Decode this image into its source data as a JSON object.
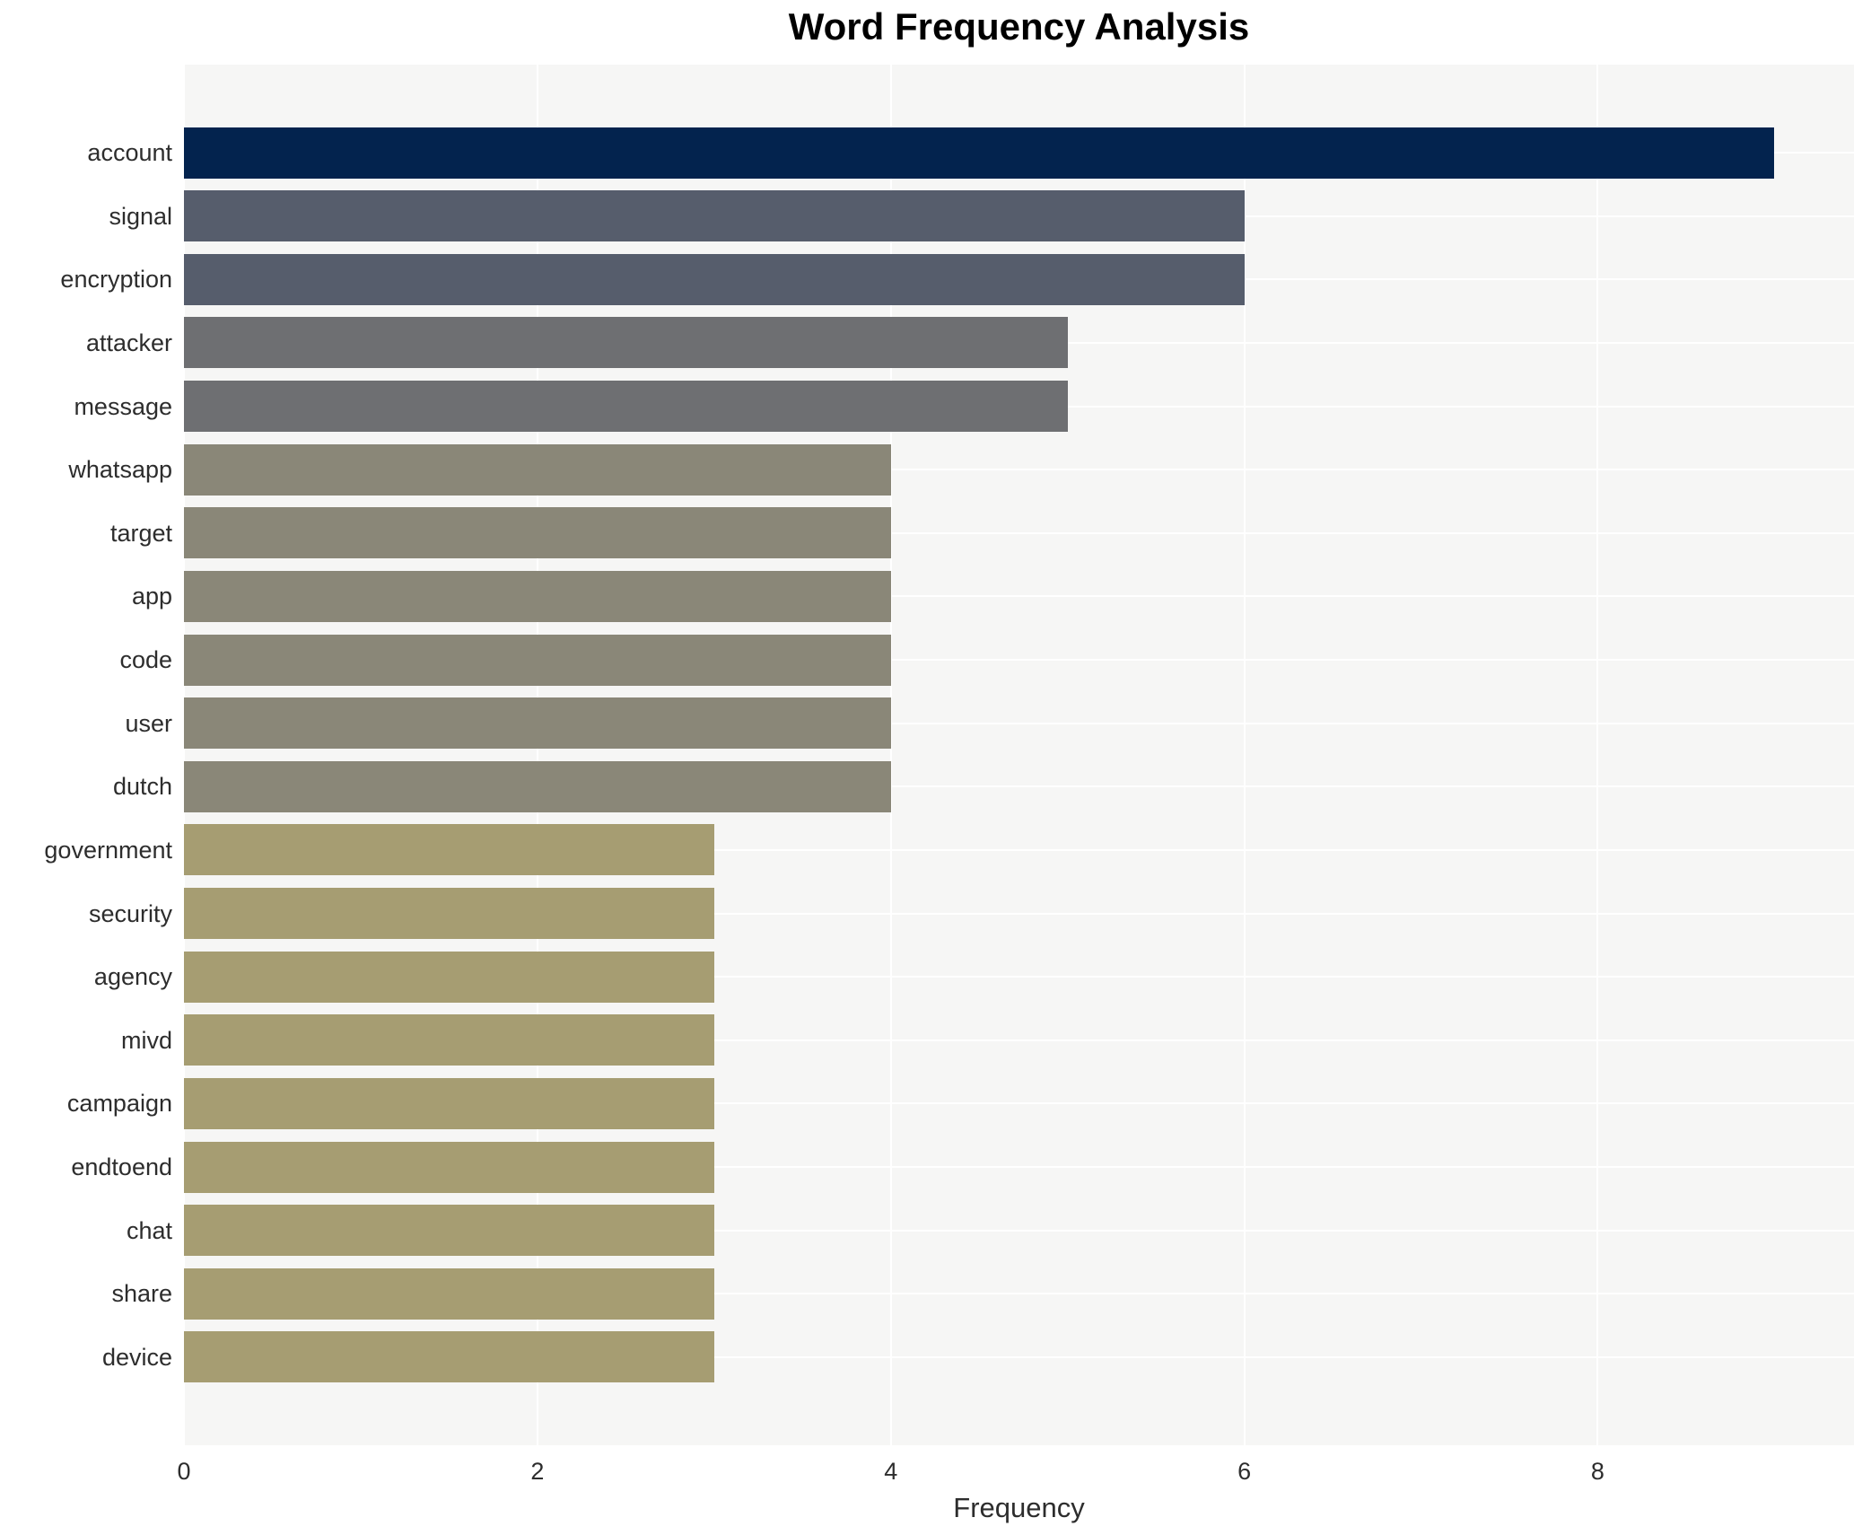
{
  "chart_data": {
    "type": "bar",
    "orientation": "horizontal",
    "title": "Word Frequency Analysis",
    "xlabel": "Frequency",
    "ylabel": "",
    "categories": [
      "account",
      "signal",
      "encryption",
      "attacker",
      "message",
      "whatsapp",
      "target",
      "app",
      "code",
      "user",
      "dutch",
      "government",
      "security",
      "agency",
      "mivd",
      "campaign",
      "endtoend",
      "chat",
      "share",
      "device"
    ],
    "values": [
      9,
      6,
      6,
      5,
      5,
      4,
      4,
      4,
      4,
      4,
      4,
      3,
      3,
      3,
      3,
      3,
      3,
      3,
      3,
      3
    ],
    "bar_colors": [
      "#03234e",
      "#565d6c",
      "#565d6c",
      "#6e6f72",
      "#6e6f72",
      "#8a8778",
      "#8a8778",
      "#8a8778",
      "#8a8778",
      "#8a8778",
      "#8a8778",
      "#a69d72",
      "#a69d72",
      "#a69d72",
      "#a69d72",
      "#a69d72",
      "#a69d72",
      "#a69d72",
      "#a69d72",
      "#a69d72"
    ],
    "xlim": [
      0,
      9.45
    ],
    "xticks": [
      0,
      2,
      4,
      6,
      8
    ],
    "grid": true,
    "legend": "none",
    "plot_background": "#f6f6f5",
    "grid_color": "#ffffff",
    "text_color": "#2d2d2d"
  }
}
